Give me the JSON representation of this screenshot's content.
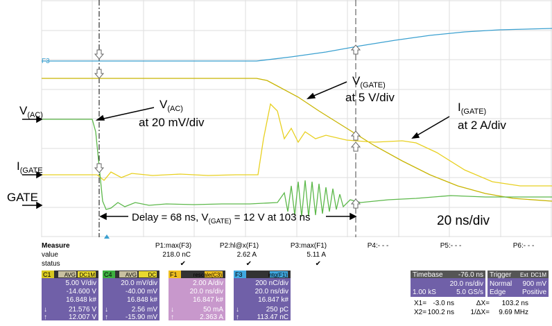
{
  "traces": {
    "f3": "F3",
    "vac_left": {
      "main": "V",
      "sub": "(AC)"
    },
    "igate_left": {
      "main": "I",
      "sub": "(GATE"
    },
    "gate_left": "GATE",
    "vac": {
      "main": "V",
      "sub": "(AC)",
      "scale": "at 20 mV/div"
    },
    "vgate": {
      "main": "V",
      "sub": "(GATE)",
      "scale": "at 5 V/div"
    },
    "igate": {
      "main": "I",
      "sub": "(GATE)",
      "scale": "at 2 A/div"
    },
    "delay": {
      "a": "Delay = 68 ns,  V",
      "sub": "(GATE)",
      "b": " = 12 V at  103 ns"
    },
    "timescale": "20 ns/div"
  },
  "measure": {
    "headers": [
      "Measure",
      "P1:max(F3)",
      "P2:hl@x(F1)",
      "P3:max(F1)",
      "P4:- - -",
      "P5:- - -",
      "P6:- - -"
    ],
    "value": [
      "value",
      "218.0 nC",
      "2.62 A",
      "5.11 A"
    ],
    "status": [
      "status",
      "✔",
      "✔",
      "✔"
    ]
  },
  "channels": [
    {
      "name": "C1",
      "tags": [
        "AVG",
        "DC1M"
      ],
      "lines": [
        "5.00 V/div",
        "-14.600 V",
        "16.848 k#"
      ],
      "low": [
        "↓",
        "21.576 V"
      ],
      "high": [
        "↑",
        "12.007 V"
      ]
    },
    {
      "name": "C4",
      "tags": [
        "AVG",
        "DC"
      ],
      "lines": [
        "20.0 mV/div",
        "-40.00 mV",
        "16.848 k#"
      ],
      "low": [
        "↓",
        "2.56 mV"
      ],
      "high": [
        "↑",
        "-15.90 mV"
      ]
    },
    {
      "name": "F1",
      "tags": [
        "rescale(C3)"
      ],
      "lines": [
        "2.00 A/div",
        "20.0 ns/div",
        "16.847 k#"
      ],
      "low": [
        "↓",
        "50 mA"
      ],
      "high": [
        "↑",
        "2.363 A"
      ]
    },
    {
      "name": "F3",
      "tags": [
        "intg(F1)"
      ],
      "lines": [
        "200 nC/div",
        "20.0 ns/div",
        "16.847 k#"
      ],
      "low": [
        "↓",
        "250 pC"
      ],
      "high": [
        "↑",
        "113.47 nC"
      ]
    }
  ],
  "timebase": {
    "label": "Timebase",
    "offset": "-76.0 ns",
    "div": "20.0 ns/div",
    "samples": "1.00 kS",
    "rate": "5.0 GS/s"
  },
  "trigger": {
    "label": "Trigger",
    "tags": [
      "Ext",
      "DC1M"
    ],
    "mode": "Normal",
    "level": "900 mV",
    "type": "Edge",
    "slope": "Positive"
  },
  "cursors": [
    [
      "X1=",
      "-3.0 ns",
      "ΔX=",
      "103.2 ns"
    ],
    [
      "X2=",
      "100.2 ns",
      "1/ΔX=",
      "9.69 MHz"
    ]
  ]
}
